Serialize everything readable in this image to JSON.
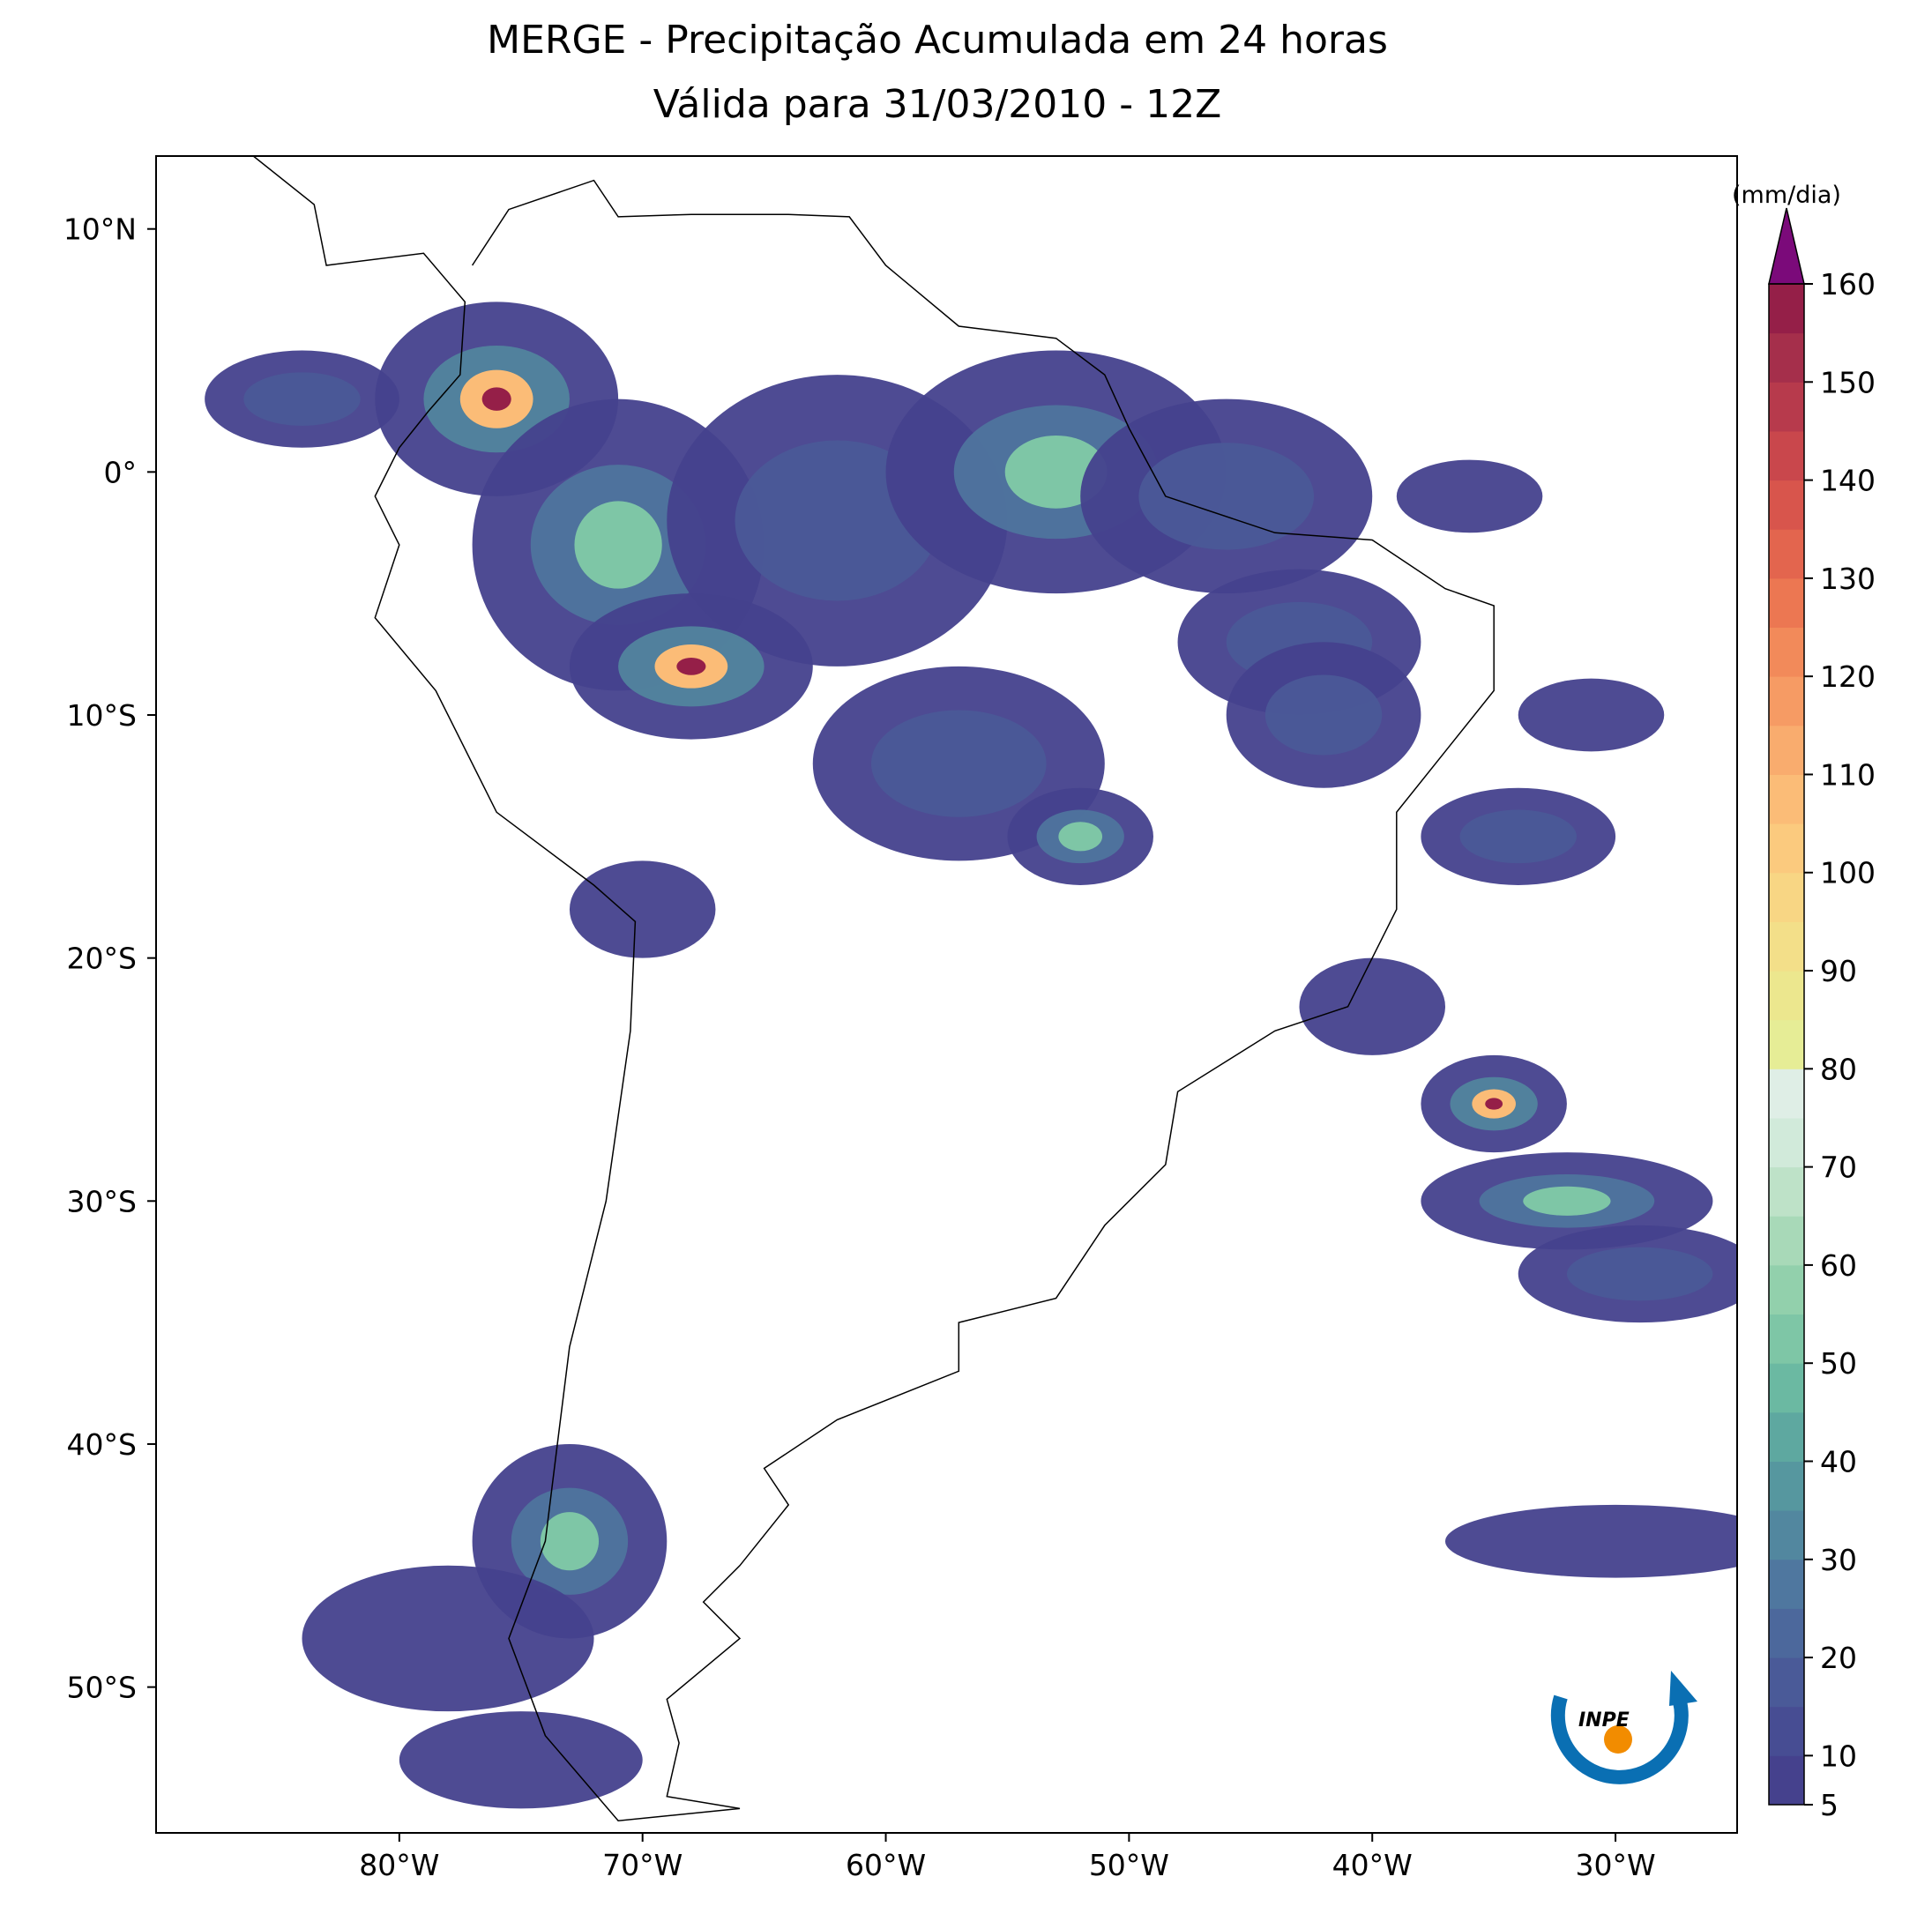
{
  "header": {
    "title": "MERGE - Precipitação Acumulada em 24 horas",
    "subtitle": "Válida para 31/03/2010 - 12Z"
  },
  "map": {
    "xlim": [
      -90,
      -25
    ],
    "ylim": [
      -56,
      13
    ],
    "xticks": [
      {
        "value": -80,
        "label": "80°W"
      },
      {
        "value": -70,
        "label": "70°W"
      },
      {
        "value": -60,
        "label": "60°W"
      },
      {
        "value": -50,
        "label": "50°W"
      },
      {
        "value": -40,
        "label": "40°W"
      },
      {
        "value": -30,
        "label": "30°W"
      }
    ],
    "yticks": [
      {
        "value": 10,
        "label": "10°N"
      },
      {
        "value": 0,
        "label": "0°"
      },
      {
        "value": -10,
        "label": "10°S"
      },
      {
        "value": -20,
        "label": "20°S"
      },
      {
        "value": -30,
        "label": "30°S"
      },
      {
        "value": -40,
        "label": "40°S"
      },
      {
        "value": -50,
        "label": "50°S"
      }
    ]
  },
  "colorbar": {
    "label": "(mm/dia)",
    "lim": [
      5,
      160
    ],
    "ticks": [
      5,
      10,
      20,
      30,
      40,
      50,
      60,
      70,
      80,
      90,
      100,
      110,
      120,
      130,
      140,
      150,
      160
    ],
    "levels": [
      5,
      10,
      15,
      20,
      25,
      30,
      35,
      40,
      45,
      50,
      55,
      60,
      65,
      70,
      75,
      80,
      85,
      90,
      95,
      100,
      105,
      110,
      115,
      120,
      125,
      130,
      135,
      140,
      145,
      150,
      155,
      160
    ],
    "colors": [
      "#45418d",
      "#474d93",
      "#4a5a98",
      "#4c689c",
      "#4f779f",
      "#52879f",
      "#56979f",
      "#5ea8a0",
      "#6bb9a2",
      "#7ec6a6",
      "#92d0ac",
      "#a8d9b8",
      "#bee2c8",
      "#d1eada",
      "#dfeee6",
      "#e6ed96",
      "#ece78e",
      "#f3df89",
      "#f8d684",
      "#fbca7e",
      "#fbbc77",
      "#f9ac6e",
      "#f69b64",
      "#f28a5a",
      "#ec7752",
      "#e3654e",
      "#d8554c",
      "#c9474c",
      "#b73a4c",
      "#a52f4b",
      "#951f48"
    ],
    "extend_color": "#7b0a7a"
  },
  "logo": "INPE"
}
